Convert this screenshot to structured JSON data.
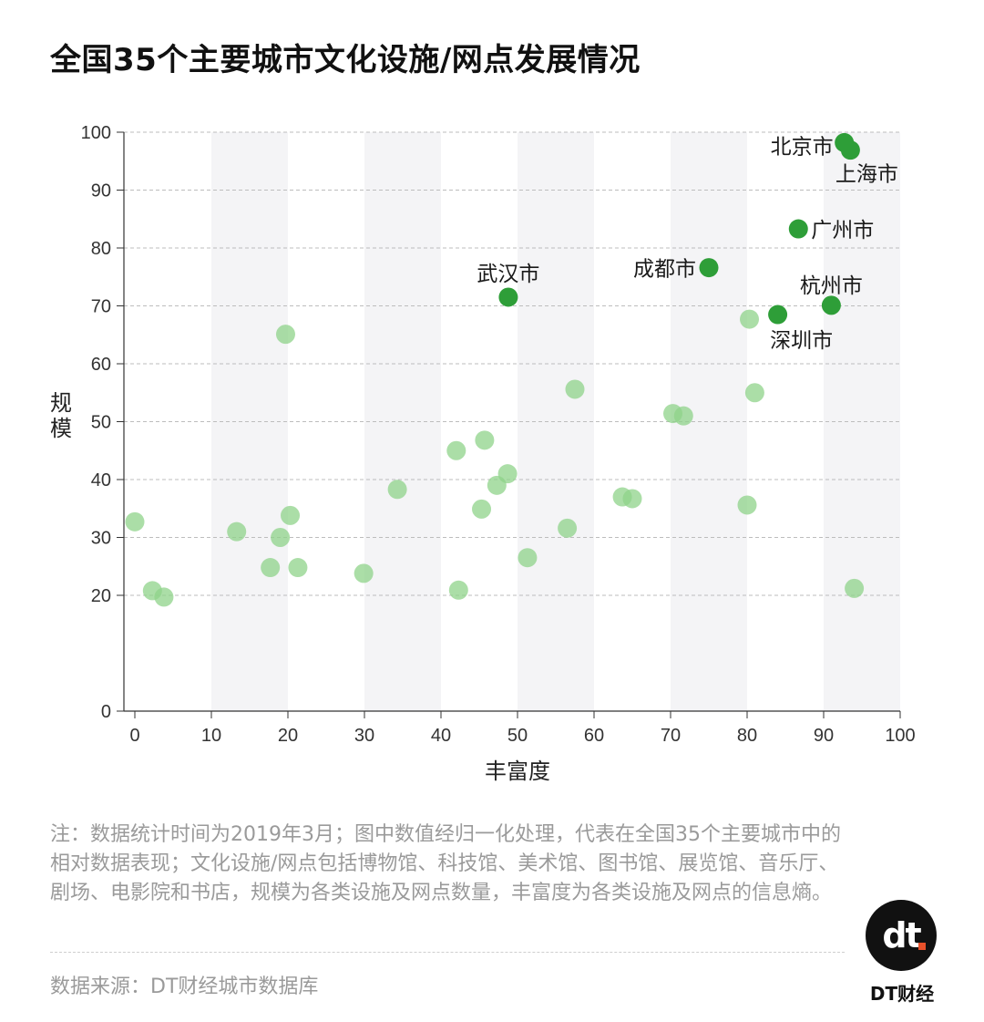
{
  "title": "全国35个主要城市文化设施/网点发展情况",
  "chart_data": {
    "type": "scatter",
    "xlabel": "丰富度",
    "ylabel": "规模",
    "xlim": [
      0,
      100
    ],
    "ylim": [
      0,
      100
    ],
    "xticks": [
      "0",
      "10",
      "20",
      "30",
      "40",
      "50",
      "60",
      "70",
      "80",
      "90",
      "100"
    ],
    "yticks": [
      "0",
      "20",
      "30",
      "40",
      "50",
      "60",
      "70",
      "80",
      "90",
      "100"
    ],
    "grid": "horizontal-dashed",
    "highlight_color": "#2e9e38",
    "base_color": "#8fd38a",
    "highlighted": [
      {
        "city": "北京市",
        "x": 92.7,
        "y": 98.2
      },
      {
        "city": "上海市",
        "x": 93.5,
        "y": 96.9
      },
      {
        "city": "广州市",
        "x": 86.7,
        "y": 83.3
      },
      {
        "city": "成都市",
        "x": 75.0,
        "y": 76.6
      },
      {
        "city": "武汉市",
        "x": 48.8,
        "y": 71.5
      },
      {
        "city": "杭州市",
        "x": 91.0,
        "y": 70.1
      },
      {
        "city": "深圳市",
        "x": 84.0,
        "y": 68.5
      }
    ],
    "others": [
      {
        "x": 0.0,
        "y": 32.7
      },
      {
        "x": 2.3,
        "y": 20.8
      },
      {
        "x": 3.8,
        "y": 19.7
      },
      {
        "x": 13.3,
        "y": 31.0
      },
      {
        "x": 17.7,
        "y": 24.8
      },
      {
        "x": 19.0,
        "y": 30.0
      },
      {
        "x": 19.7,
        "y": 65.1
      },
      {
        "x": 20.3,
        "y": 33.8
      },
      {
        "x": 21.3,
        "y": 24.8
      },
      {
        "x": 29.9,
        "y": 23.8
      },
      {
        "x": 34.3,
        "y": 38.3
      },
      {
        "x": 42.0,
        "y": 45.0
      },
      {
        "x": 42.3,
        "y": 20.9
      },
      {
        "x": 45.3,
        "y": 34.9
      },
      {
        "x": 45.7,
        "y": 46.8
      },
      {
        "x": 47.3,
        "y": 39.0
      },
      {
        "x": 48.7,
        "y": 41.0
      },
      {
        "x": 51.3,
        "y": 26.5
      },
      {
        "x": 56.5,
        "y": 31.6
      },
      {
        "x": 57.5,
        "y": 55.6
      },
      {
        "x": 63.7,
        "y": 37.0
      },
      {
        "x": 65.0,
        "y": 36.7
      },
      {
        "x": 70.3,
        "y": 51.4
      },
      {
        "x": 71.7,
        "y": 51.0
      },
      {
        "x": 80.0,
        "y": 35.6
      },
      {
        "x": 80.3,
        "y": 67.7
      },
      {
        "x": 81.0,
        "y": 55.0
      },
      {
        "x": 94.0,
        "y": 21.2
      }
    ]
  },
  "note": "注：数据统计时间为2019年3月；图中数值经归一化处理，代表在全国35个主要城市中的相对数据表现；文化设施/网点包括博物馆、科技馆、美术馆、图书馆、展览馆、音乐厅、剧场、电影院和书店，规模为各类设施及网点数量，丰富度为各类设施及网点的信息熵。",
  "source": "数据来源：DT财经城市数据库",
  "logo": {
    "mark": "dt",
    "name": "DT财经",
    "accent": "#e8512a"
  }
}
